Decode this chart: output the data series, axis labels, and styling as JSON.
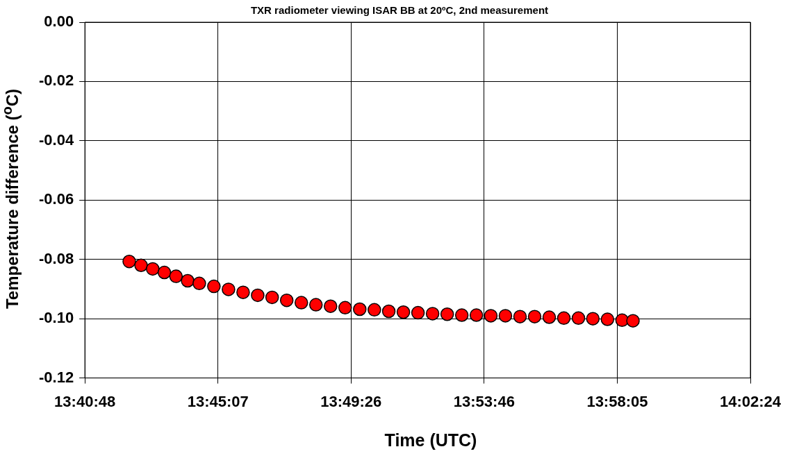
{
  "chart_data": {
    "type": "scatter",
    "title": "TXR radiometer viewing ISAR BB at 20ºC, 2nd measurement",
    "xlabel": "Time (UTC)",
    "ylabel": "Temperature difference ($^{o}$C)",
    "x": [
      13.704,
      13.7104,
      13.7167,
      13.723,
      13.7293,
      13.7356,
      13.7419,
      13.7498,
      13.7577,
      13.7656,
      13.7735,
      13.7813,
      13.7892,
      13.7971,
      13.805,
      13.8129,
      13.8208,
      13.8287,
      13.8366,
      13.8444,
      13.8523,
      13.8602,
      13.8681,
      13.876,
      13.8839,
      13.8918,
      13.8996,
      13.9075,
      13.9154,
      13.9233,
      13.9312,
      13.9391,
      13.947,
      13.9548,
      13.9627,
      13.9706,
      13.9765
    ],
    "series": [
      {
        "color": "#ff0000",
        "values": [
          -0.0807,
          -0.082,
          -0.0832,
          -0.0844,
          -0.0857,
          -0.0872,
          -0.0881,
          -0.0891,
          -0.0901,
          -0.0911,
          -0.0921,
          -0.0928,
          -0.0938,
          -0.0946,
          -0.0953,
          -0.0958,
          -0.0963,
          -0.0968,
          -0.097,
          -0.0975,
          -0.0978,
          -0.098,
          -0.0983,
          -0.0985,
          -0.0988,
          -0.0988,
          -0.099,
          -0.099,
          -0.0993,
          -0.0993,
          -0.0995,
          -0.0998,
          -0.0998,
          -0.1,
          -0.1002,
          -0.1005,
          -0.1007
        ]
      }
    ],
    "xlim": [
      13.68,
      14.04
    ],
    "xticks": [
      {
        "value": 13.68,
        "label": "13:40:48"
      },
      {
        "value": 13.752,
        "label": "13:45:07"
      },
      {
        "value": 13.824,
        "label": "13:49:26"
      },
      {
        "value": 13.896,
        "label": "13:53:46"
      },
      {
        "value": 13.968,
        "label": "13:58:05"
      },
      {
        "value": 14.04,
        "label": "14:02:24"
      }
    ],
    "ylim": [
      -0.12,
      0
    ],
    "yticks": [
      {
        "value": 0,
        "label": "0.00"
      },
      {
        "value": -0.02,
        "label": "-0.02"
      },
      {
        "value": -0.04,
        "label": "-0.04"
      },
      {
        "value": -0.06,
        "label": "-0.06"
      },
      {
        "value": -0.08,
        "label": "-0.08"
      },
      {
        "value": -0.1,
        "label": "-0.10"
      },
      {
        "value": -0.12,
        "label": "-0.12"
      }
    ],
    "grid": true,
    "marker": "circle"
  }
}
